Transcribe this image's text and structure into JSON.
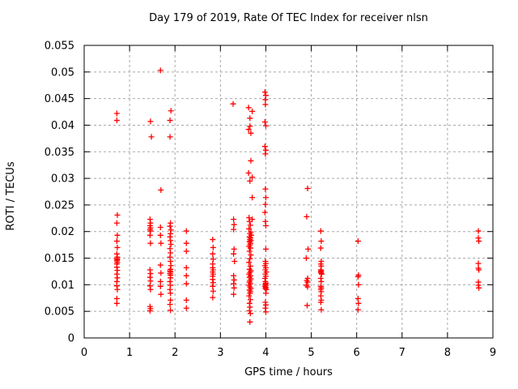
{
  "colors": {
    "background": "#ffffff",
    "marker": "#ff0000",
    "grid": "#a8a8a8",
    "border": "#000000",
    "text": "#000000"
  },
  "chart_data": {
    "type": "scatter",
    "title": "Day 179 of 2019, Rate Of TEC Index for receiver nlsn",
    "xlabel": "GPS time / hours",
    "ylabel": "ROTI / TECUs",
    "xlim": [
      0,
      9
    ],
    "ylim": [
      0,
      0.055
    ],
    "x_ticks": [
      0,
      1,
      2,
      3,
      4,
      5,
      6,
      7,
      8,
      9
    ],
    "x_tick_labels": [
      "0",
      "1",
      "2",
      "3",
      "4",
      "5",
      "6",
      "7",
      "8",
      "9"
    ],
    "y_ticks": [
      0,
      0.005,
      0.01,
      0.015,
      0.02,
      0.025,
      0.03,
      0.035,
      0.04,
      0.045,
      0.05,
      0.055
    ],
    "y_tick_labels": [
      "0",
      "0.005",
      "0.01",
      "0.015",
      "0.02",
      "0.025",
      "0.03",
      "0.035",
      "0.04",
      "0.045",
      "0.05",
      "0.055"
    ],
    "grid": true,
    "legend_position": "none",
    "marker": {
      "shape": "plus",
      "color": "#ff0000"
    },
    "series": [
      {
        "name": "ROTI",
        "points": [
          [
            0.72,
            0.0422
          ],
          [
            0.72,
            0.0409
          ],
          [
            0.73,
            0.0231
          ],
          [
            0.72,
            0.0216
          ],
          [
            0.73,
            0.0193
          ],
          [
            0.72,
            0.0182
          ],
          [
            0.73,
            0.017
          ],
          [
            0.72,
            0.0158
          ],
          [
            0.73,
            0.0152
          ],
          [
            0.72,
            0.0149
          ],
          [
            0.73,
            0.0147
          ],
          [
            0.72,
            0.0145
          ],
          [
            0.73,
            0.0142
          ],
          [
            0.72,
            0.0139
          ],
          [
            0.72,
            0.0133
          ],
          [
            0.73,
            0.0127
          ],
          [
            0.72,
            0.012
          ],
          [
            0.73,
            0.0113
          ],
          [
            0.72,
            0.0106
          ],
          [
            0.72,
            0.0098
          ],
          [
            0.73,
            0.0091
          ],
          [
            0.72,
            0.0074
          ],
          [
            0.72,
            0.0065
          ],
          [
            1.46,
            0.0407
          ],
          [
            1.48,
            0.0378
          ],
          [
            1.45,
            0.0223
          ],
          [
            1.46,
            0.0216
          ],
          [
            1.45,
            0.0211
          ],
          [
            1.46,
            0.0207
          ],
          [
            1.45,
            0.0204
          ],
          [
            1.46,
            0.0201
          ],
          [
            1.45,
            0.0193
          ],
          [
            1.46,
            0.0178
          ],
          [
            1.45,
            0.0128
          ],
          [
            1.46,
            0.0121
          ],
          [
            1.45,
            0.0114
          ],
          [
            1.46,
            0.0107
          ],
          [
            1.45,
            0.0098
          ],
          [
            1.46,
            0.0091
          ],
          [
            1.45,
            0.0059
          ],
          [
            1.46,
            0.0055
          ],
          [
            1.45,
            0.0051
          ],
          [
            1.68,
            0.0503
          ],
          [
            1.69,
            0.0278
          ],
          [
            1.68,
            0.0208
          ],
          [
            1.68,
            0.0193
          ],
          [
            1.69,
            0.0178
          ],
          [
            1.68,
            0.0137
          ],
          [
            1.69,
            0.0122
          ],
          [
            1.68,
            0.0106
          ],
          [
            1.68,
            0.0097
          ],
          [
            1.69,
            0.0082
          ],
          [
            1.91,
            0.0427
          ],
          [
            1.89,
            0.0409
          ],
          [
            1.89,
            0.0378
          ],
          [
            1.9,
            0.0216
          ],
          [
            1.89,
            0.021
          ],
          [
            1.91,
            0.0203
          ],
          [
            1.9,
            0.0196
          ],
          [
            1.89,
            0.019
          ],
          [
            1.9,
            0.0183
          ],
          [
            1.91,
            0.0176
          ],
          [
            1.89,
            0.0168
          ],
          [
            1.9,
            0.016
          ],
          [
            1.89,
            0.0152
          ],
          [
            1.9,
            0.0144
          ],
          [
            1.91,
            0.0136
          ],
          [
            1.9,
            0.0129
          ],
          [
            1.89,
            0.0126
          ],
          [
            1.9,
            0.0124
          ],
          [
            1.89,
            0.0121
          ],
          [
            1.9,
            0.0118
          ],
          [
            1.9,
            0.0113
          ],
          [
            1.89,
            0.0106
          ],
          [
            1.9,
            0.0099
          ],
          [
            1.89,
            0.0091
          ],
          [
            1.9,
            0.0084
          ],
          [
            1.9,
            0.0071
          ],
          [
            1.89,
            0.0063
          ],
          [
            1.9,
            0.0052
          ],
          [
            2.25,
            0.0201
          ],
          [
            2.25,
            0.0178
          ],
          [
            2.25,
            0.0163
          ],
          [
            2.25,
            0.0132
          ],
          [
            2.25,
            0.0117
          ],
          [
            2.25,
            0.0102
          ],
          [
            2.25,
            0.0071
          ],
          [
            2.25,
            0.0056
          ],
          [
            2.83,
            0.0185
          ],
          [
            2.84,
            0.017
          ],
          [
            2.83,
            0.0158
          ],
          [
            2.84,
            0.0148
          ],
          [
            2.83,
            0.0139
          ],
          [
            2.83,
            0.0132
          ],
          [
            2.84,
            0.0128
          ],
          [
            2.83,
            0.0124
          ],
          [
            2.84,
            0.012
          ],
          [
            2.83,
            0.0116
          ],
          [
            2.83,
            0.011
          ],
          [
            2.84,
            0.0104
          ],
          [
            2.83,
            0.0097
          ],
          [
            2.84,
            0.0088
          ],
          [
            2.83,
            0.0076
          ],
          [
            3.28,
            0.044
          ],
          [
            3.29,
            0.0223
          ],
          [
            3.3,
            0.0213
          ],
          [
            3.29,
            0.0204
          ],
          [
            3.3,
            0.0167
          ],
          [
            3.29,
            0.0158
          ],
          [
            3.31,
            0.0144
          ],
          [
            3.29,
            0.0117
          ],
          [
            3.3,
            0.0109
          ],
          [
            3.29,
            0.0102
          ],
          [
            3.3,
            0.0094
          ],
          [
            3.29,
            0.0082
          ],
          [
            3.62,
            0.0433
          ],
          [
            3.7,
            0.0426
          ],
          [
            3.65,
            0.0413
          ],
          [
            3.65,
            0.0398
          ],
          [
            3.62,
            0.0392
          ],
          [
            3.67,
            0.0385
          ],
          [
            3.67,
            0.0333
          ],
          [
            3.62,
            0.031
          ],
          [
            3.7,
            0.0302
          ],
          [
            3.65,
            0.0295
          ],
          [
            3.7,
            0.0264
          ],
          [
            3.63,
            0.0226
          ],
          [
            3.7,
            0.0223
          ],
          [
            3.64,
            0.0219
          ],
          [
            3.66,
            0.0212
          ],
          [
            3.63,
            0.0205
          ],
          [
            3.67,
            0.0199
          ],
          [
            3.65,
            0.0196
          ],
          [
            3.68,
            0.0193
          ],
          [
            3.64,
            0.019
          ],
          [
            3.66,
            0.0188
          ],
          [
            3.65,
            0.0185
          ],
          [
            3.67,
            0.0183
          ],
          [
            3.64,
            0.0181
          ],
          [
            3.66,
            0.0178
          ],
          [
            3.65,
            0.0175
          ],
          [
            3.63,
            0.0172
          ],
          [
            3.66,
            0.0169
          ],
          [
            3.64,
            0.0163
          ],
          [
            3.67,
            0.0156
          ],
          [
            3.65,
            0.0149
          ],
          [
            3.63,
            0.0142
          ],
          [
            3.66,
            0.0135
          ],
          [
            3.64,
            0.0129
          ],
          [
            3.67,
            0.0126
          ],
          [
            3.65,
            0.0123
          ],
          [
            3.63,
            0.012
          ],
          [
            3.66,
            0.0117
          ],
          [
            3.64,
            0.0114
          ],
          [
            3.67,
            0.0111
          ],
          [
            3.65,
            0.0108
          ],
          [
            3.64,
            0.0105
          ],
          [
            3.66,
            0.0102
          ],
          [
            3.63,
            0.0099
          ],
          [
            3.65,
            0.0096
          ],
          [
            3.67,
            0.0093
          ],
          [
            3.64,
            0.009
          ],
          [
            3.66,
            0.0087
          ],
          [
            3.65,
            0.0084
          ],
          [
            3.63,
            0.0079
          ],
          [
            3.66,
            0.0072
          ],
          [
            3.64,
            0.0065
          ],
          [
            3.65,
            0.0058
          ],
          [
            3.64,
            0.0051
          ],
          [
            3.66,
            0.0046
          ],
          [
            3.65,
            0.003
          ],
          [
            3.98,
            0.0462
          ],
          [
            4.0,
            0.0456
          ],
          [
            3.99,
            0.0448
          ],
          [
            3.99,
            0.0439
          ],
          [
            3.98,
            0.0406
          ],
          [
            4.0,
            0.0399
          ],
          [
            3.98,
            0.036
          ],
          [
            4.0,
            0.0353
          ],
          [
            3.99,
            0.0346
          ],
          [
            3.99,
            0.028
          ],
          [
            4.0,
            0.0264
          ],
          [
            3.99,
            0.0251
          ],
          [
            3.98,
            0.0236
          ],
          [
            3.99,
            0.0219
          ],
          [
            4.0,
            0.0211
          ],
          [
            4.0,
            0.0167
          ],
          [
            3.99,
            0.0144
          ],
          [
            4.0,
            0.014
          ],
          [
            3.98,
            0.0136
          ],
          [
            4.0,
            0.0132
          ],
          [
            3.99,
            0.0128
          ],
          [
            4.01,
            0.0124
          ],
          [
            3.99,
            0.012
          ],
          [
            4.0,
            0.0116
          ],
          [
            3.98,
            0.0112
          ],
          [
            3.99,
            0.0106
          ],
          [
            4.0,
            0.0103
          ],
          [
            3.99,
            0.0101
          ],
          [
            4.0,
            0.0099
          ],
          [
            3.98,
            0.0097
          ],
          [
            4.0,
            0.0095
          ],
          [
            3.99,
            0.0093
          ],
          [
            4.01,
            0.0091
          ],
          [
            4.0,
            0.0084
          ],
          [
            3.99,
            0.0067
          ],
          [
            4.0,
            0.0062
          ],
          [
            3.99,
            0.0056
          ],
          [
            4.0,
            0.0049
          ],
          [
            4.92,
            0.0281
          ],
          [
            4.9,
            0.0228
          ],
          [
            4.93,
            0.0167
          ],
          [
            4.89,
            0.015
          ],
          [
            4.92,
            0.0112
          ],
          [
            4.9,
            0.0108
          ],
          [
            4.92,
            0.0105
          ],
          [
            4.89,
            0.0099
          ],
          [
            4.92,
            0.0096
          ],
          [
            4.91,
            0.0061
          ],
          [
            5.21,
            0.0201
          ],
          [
            5.22,
            0.0182
          ],
          [
            5.21,
            0.0169
          ],
          [
            5.22,
            0.0144
          ],
          [
            5.21,
            0.0139
          ],
          [
            5.22,
            0.0135
          ],
          [
            5.21,
            0.0128
          ],
          [
            5.22,
            0.0126
          ],
          [
            5.21,
            0.0124
          ],
          [
            5.22,
            0.0122
          ],
          [
            5.23,
            0.012
          ],
          [
            5.21,
            0.0112
          ],
          [
            5.22,
            0.0106
          ],
          [
            5.21,
            0.0097
          ],
          [
            5.22,
            0.0094
          ],
          [
            5.21,
            0.0091
          ],
          [
            5.22,
            0.0087
          ],
          [
            5.21,
            0.0079
          ],
          [
            5.22,
            0.0071
          ],
          [
            5.21,
            0.0067
          ],
          [
            5.22,
            0.0053
          ],
          [
            6.03,
            0.0182
          ],
          [
            6.04,
            0.0118
          ],
          [
            6.03,
            0.0115
          ],
          [
            6.04,
            0.01
          ],
          [
            6.03,
            0.0074
          ],
          [
            6.04,
            0.0065
          ],
          [
            6.03,
            0.0053
          ],
          [
            8.68,
            0.0201
          ],
          [
            8.68,
            0.0188
          ],
          [
            8.69,
            0.0182
          ],
          [
            8.68,
            0.014
          ],
          [
            8.68,
            0.0131
          ],
          [
            8.69,
            0.0128
          ],
          [
            8.68,
            0.0105
          ],
          [
            8.68,
            0.0099
          ],
          [
            8.69,
            0.0094
          ]
        ]
      }
    ]
  }
}
